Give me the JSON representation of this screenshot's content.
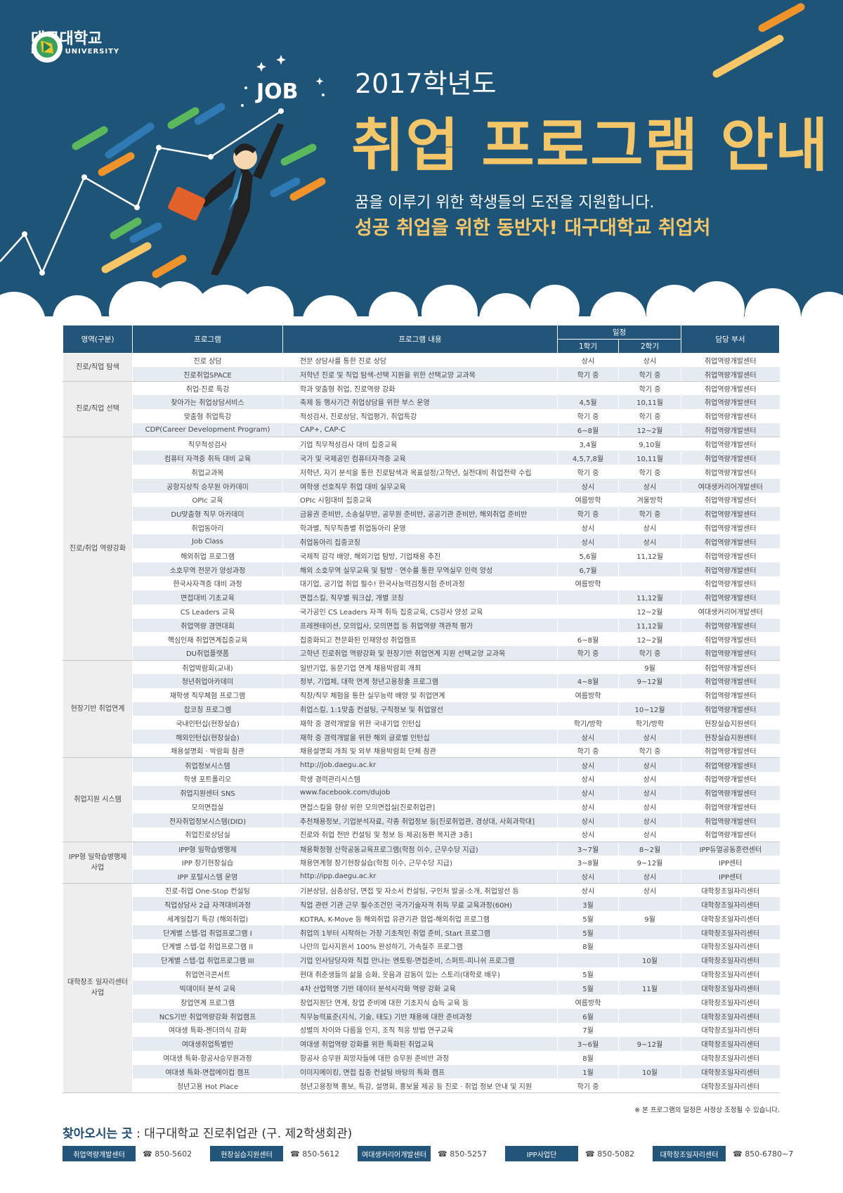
{
  "header": {
    "logo_korean": "대구대학교",
    "logo_english": "DAEGU UNIVERSITY",
    "job_badge": "JOB",
    "year_title": "2017학년도",
    "main_title": "취업 프로그램 안내",
    "subtitle": "꿈을 이루기 위한 학생들의 도전을 지원합니다.",
    "slogan": "성공 취업을 위한 동반자! 대구대학교 취업처"
  },
  "colors": {
    "background": "#1f5479",
    "accent": "#f4c66a",
    "table_header": "#235479",
    "stripe": "#e6ebf2"
  },
  "table": {
    "headers": {
      "area": "영역(구분)",
      "program": "프로그램",
      "content": "프로그램 내용",
      "schedule": "일정",
      "sem1": "1학기",
      "sem2": "2학기",
      "dept": "담당 부서"
    },
    "groups": [
      {
        "label": "진로/직업 탐색",
        "rows": [
          [
            "진로 상담",
            "전문 상담사를 통한 진로 상담",
            "상시",
            "상시",
            "취업역량개발센터"
          ],
          [
            "진로취업SPACE",
            "저학년 진로 및 직업 탐색-선택 지원을 위한 선택교양 교과목",
            "학기 중",
            "학기 중",
            "취업역량개발센터"
          ]
        ]
      },
      {
        "label": "진로/직업 선택",
        "rows": [
          [
            "취업·진로 특강",
            "학과 맞춤형 취업, 진로역량 강화",
            "",
            "학기 중",
            "취업역량개발센터"
          ],
          [
            "찾아가는 취업상담서비스",
            "축제 등 행사기간 취업상담을 위한 부스 운영",
            "4,5월",
            "10,11월",
            "취업역량개발센터"
          ],
          [
            "맞춤형 취업특강",
            "적성검사, 진로상담, 직업평가, 취업특강",
            "학기 중",
            "학기 중",
            "취업역량개발센터"
          ],
          [
            "CDP(Career Development Program)",
            "CAP+, CAP-C",
            "6~8월",
            "12~2월",
            "취업역량개발센터"
          ]
        ]
      },
      {
        "label": "진로/취업 역량강화",
        "rows": [
          [
            "직무적성검사",
            "기업 직무적성검사 대비 집중교육",
            "3,4월",
            "9,10월",
            "취업역량개발센터"
          ],
          [
            "컴퓨터 자격증 취득 대비 교육",
            "국가 및 국제공인 컴퓨터자격증 교육",
            "4,5,7,8월",
            "10,11월",
            "취업역량개발센터"
          ],
          [
            "취업교과목",
            "저학년, 자기 분석을 통한 진로탐색과 목표설정/고학년, 실전대비 취업전략 수립",
            "학기 중",
            "학기 중",
            "취업역량개발센터"
          ],
          [
            "공항지상직 승무원 아카데미",
            "여학생 선호직무 취업 대비 실무교육",
            "상시",
            "상시",
            "여대생커리어개발센터"
          ],
          [
            "OPIc 교육",
            "OPIc 시험대비 집중교육",
            "여름방학",
            "겨울방학",
            "취업역량개발센터"
          ],
          [
            "DU맞춤형 직무 아카데미",
            "금융권 준비반, 소송실무반, 공무원 준비반, 공공기관 준비반, 해외취업 준비반",
            "학기 중",
            "학기 중",
            "취업역량개발센터"
          ],
          [
            "취업동아리",
            "학과별, 직무직종별 취업동아리 운영",
            "상시",
            "상시",
            "취업역량개발센터"
          ],
          [
            "Job Class",
            "취업동아리 집중코칭",
            "상시",
            "상시",
            "취업역량개발센터"
          ],
          [
            "해외취업 프로그램",
            "국제적 감각 배양, 해외기업 탐방, 기업채용 추진",
            "5,6월",
            "11,12월",
            "취업역량개발센터"
          ],
          [
            "소호무역 전문가 양성과정",
            "해외 소호무역 실무교육 및 탐방 · 연수를 통한 무역실무 인력 양성",
            "6,7월",
            "",
            "취업역량개발센터"
          ],
          [
            "한국사자격증 대비 과정",
            "대기업, 공기업 취업 필수! 한국사능력검정시험 준비과정",
            "여름방학",
            "",
            "취업역량개발센터"
          ],
          [
            "면접대비 기초교육",
            "면접스킬, 직무별 워크샵, 개별 코칭",
            "",
            "11,12월",
            "취업역량개발센터"
          ],
          [
            "CS Leaders 교육",
            "국가공인 CS Leaders 자격 취득 집중교육, CS강사 양성 교육",
            "",
            "12~2월",
            "여대생커리어개발센터"
          ],
          [
            "취업역량 경연대회",
            "프레젠테이션, 모의입사, 모의면접 등 취업역량 객관적 평가",
            "",
            "11,12월",
            "취업역량개발센터"
          ],
          [
            "핵심인재 취업연계집중교육",
            "집중화되고 전문화된 인재양성 취업캠프",
            "6~8월",
            "12~2월",
            "취업역량개발센터"
          ],
          [
            "DU취업플랫폼",
            "고학년 진로취업 역량강화 및 현장기반 취업연계 지원 선택교양 교과목",
            "학기 중",
            "학기 중",
            "취업역량개발센터"
          ]
        ]
      },
      {
        "label": "현장기반 취업연계",
        "rows": [
          [
            "취업박람회(교내)",
            "일반기업, 동문기업 연계 채용박람회 개최",
            "",
            "9월",
            "취업역량개발센터"
          ],
          [
            "청년취업아카데미",
            "정부, 기업체, 대학 연계 청년고용창출 프로그램",
            "4~8월",
            "9~12월",
            "취업역량개발센터"
          ],
          [
            "재학생 직무체험 프로그램",
            "직장/직무 체험을 통한 실무능력 배양 및 취업연계",
            "여름방학",
            "",
            "취업역량개발센터"
          ],
          [
            "잡코칭 프로그램",
            "취업스킬, 1:1맞춤 컨설팅, 구직정보 및 취업알선",
            "",
            "10~12월",
            "취업역량개발센터"
          ],
          [
            "국내인턴십(현장실습)",
            "재학 중 경력개발을 위한 국내기업 인턴십",
            "학기/방학",
            "학기/방학",
            "현장실습지원센터"
          ],
          [
            "해외인턴십(현장실습)",
            "재학 중 경력개발을 위한 해외 글로벌 인턴십",
            "상시",
            "상시",
            "현장실습지원센터"
          ],
          [
            "채용설명회 · 박람회 참관",
            "채용설명회 개최 및 외부 채용박람회 단체 참관",
            "학기 중",
            "학기 중",
            "취업역량개발센터"
          ]
        ]
      },
      {
        "label": "취업지원 시스템",
        "rows": [
          [
            "취업정보시스템",
            "http://job.daegu.ac.kr",
            "상시",
            "상시",
            "취업역량개발센터"
          ],
          [
            "학생 포트폴리오",
            "학생 경력관리시스템",
            "상시",
            "상시",
            "취업역량개발센터"
          ],
          [
            "취업지원센터 SNS",
            "www.facebook.com/dujob",
            "상시",
            "상시",
            "취업역량개발센터"
          ],
          [
            "모의면접실",
            "면접스킬을 향상 위한 모의면접실[진로취업관]",
            "상시",
            "상시",
            "취업역량개발센터"
          ],
          [
            "전자취업정보시스템(DID)",
            "추천채용정보, 기업분석자료, 각종 취업정보 등[진로취업관, 경상대, 사회과학대]",
            "상시",
            "상시",
            "취업역량개발센터"
          ],
          [
            "취업진로상담실",
            "진로와 취업 전반 컨설팅 및 정보 등 제공[동편 복지관 3층]",
            "상시",
            "상시",
            "취업역량개발센터"
          ]
        ]
      },
      {
        "label": "IPP형 일학습병행제 사업",
        "rows": [
          [
            "IPP형 일학습병행제",
            "채용확정형 산학공동교육프로그램(학점 이수, 근무수당 지급)",
            "3~7월",
            "8~2월",
            "IPP듀얼공동훈련센터"
          ],
          [
            "IPP 장기현장실습",
            "채용연계형 장기현장실습(학점 이수, 근무수당 지급)",
            "3~8월",
            "9~12월",
            "IPP센터"
          ],
          [
            "IPP 포털시스템 운영",
            "http://ipp.daegu.ac.kr",
            "상시",
            "상시",
            "IPP센터"
          ]
        ]
      },
      {
        "label": "대학창조 일자리센터 사업",
        "rows": [
          [
            "진로·취업 One-Stop 컨설팅",
            "기본상담, 심층상담, 면접 및 자소서 컨설팅, 구인처 발굴-소개, 취업알선 등",
            "상시",
            "상시",
            "대학창조일자리센터"
          ],
          [
            "직업상담사 2급 자격대비과정",
            "직업 관련 기관 근무 필수조건인 국가기술자격 취득 무료 교육과정(60H)",
            "3월",
            "",
            "대학창조일자리센터"
          ],
          [
            "세계일잡기 특강 (해외취업)",
            "KOTRA, K-Move 등 해외취업 유관기관 협업-해외취업 프로그램",
            "5월",
            "9월",
            "대학창조일자리센터"
          ],
          [
            "단계별 스텝-업 취업프로그램 I",
            "취업의 1부터 시작하는 가장 기초적인 취업 준비, Start 프로그램",
            "5월",
            "",
            "대학창조일자리센터"
          ],
          [
            "단계별 스텝-업 취업프로그램 II",
            "나만의 입사지원서 100% 완성하기, 가속질주 프로그램",
            "8월",
            "",
            "대학창조일자리센터"
          ],
          [
            "단계별 스텝-업 취업프로그램 III",
            "기업 인사담당자와 직접 만나는 멘토링-면접준비, 스퍼트-피니쉬 프로그램",
            "",
            "10월",
            "대학창조일자리센터"
          ],
          [
            "취업연극콘서트",
            "현대 취준생들의 삶을 승화, 웃음과 감동이 있는 스토리(대학로 배우)",
            "5월",
            "",
            "대학창조일자리센터"
          ],
          [
            "빅데이터 분석 교육",
            "4차 산업혁명 기반 데이터 분석시각화 역량 강화 교육",
            "5월",
            "11월",
            "대학창조일자리센터"
          ],
          [
            "창업연계 프로그램",
            "창업지원단 연계, 창업 준비에 대한 기초지식 습득 교육 등",
            "여름방학",
            "",
            "대학창조일자리센터"
          ],
          [
            "NCS기반 취업역량강화 취업캠프",
            "직무능력표준(지식, 기술, 태도) 기반 채용에 대한 준비과정",
            "6월",
            "",
            "대학창조일자리센터"
          ],
          [
            "여대생 특화-젠더의식 강화",
            "성별의 차이와 다름을 인지, 조직 적응 방법 연구교육",
            "7월",
            "",
            "대학창조일자리센터"
          ],
          [
            "여대생취업특별반",
            "여대생 취업역량 강화를 위한 특화된 취업교육",
            "3~6월",
            "9~12월",
            "대학창조일자리센터"
          ],
          [
            "여대생 특화-항공사승무원과정",
            "항공사 승무원 희망자들에 대한 승무원 준비반 과정",
            "8월",
            "",
            "대학창조일자리센터"
          ],
          [
            "여대생 특화-면접메이컵 캠프",
            "이미지메이킹, 면접 집중 컨설팅 바탕의 특화 캠프",
            "1월",
            "10월",
            "대학창조일자리센터"
          ],
          [
            "청년고용 Hot Place",
            "청년고용정책 홍보, 특강, 설명회, 홍보물 제공 등 진로 · 취업 정보 안내 및 지원",
            "학기 중",
            "",
            "대학창조일자리센터"
          ]
        ]
      }
    ]
  },
  "footer": {
    "note": "※ 본 프로그램의 일정은 사정상 조정될 수 있습니다.",
    "visit_label": "찾아오시는 곳",
    "visit_place": ": 대구대학교 진로취업관 (구. 제2학생회관)",
    "contacts": [
      {
        "name": "취업역량개발센터",
        "phone": "850-5602"
      },
      {
        "name": "현장실습지원센터",
        "phone": "850-5612"
      },
      {
        "name": "여대생커리어개발센터",
        "phone": "850-5257"
      },
      {
        "name": "IPP사업단",
        "phone": "850-5082"
      },
      {
        "name": "대학창조일자리센터",
        "phone": "850-6780~7"
      }
    ]
  }
}
